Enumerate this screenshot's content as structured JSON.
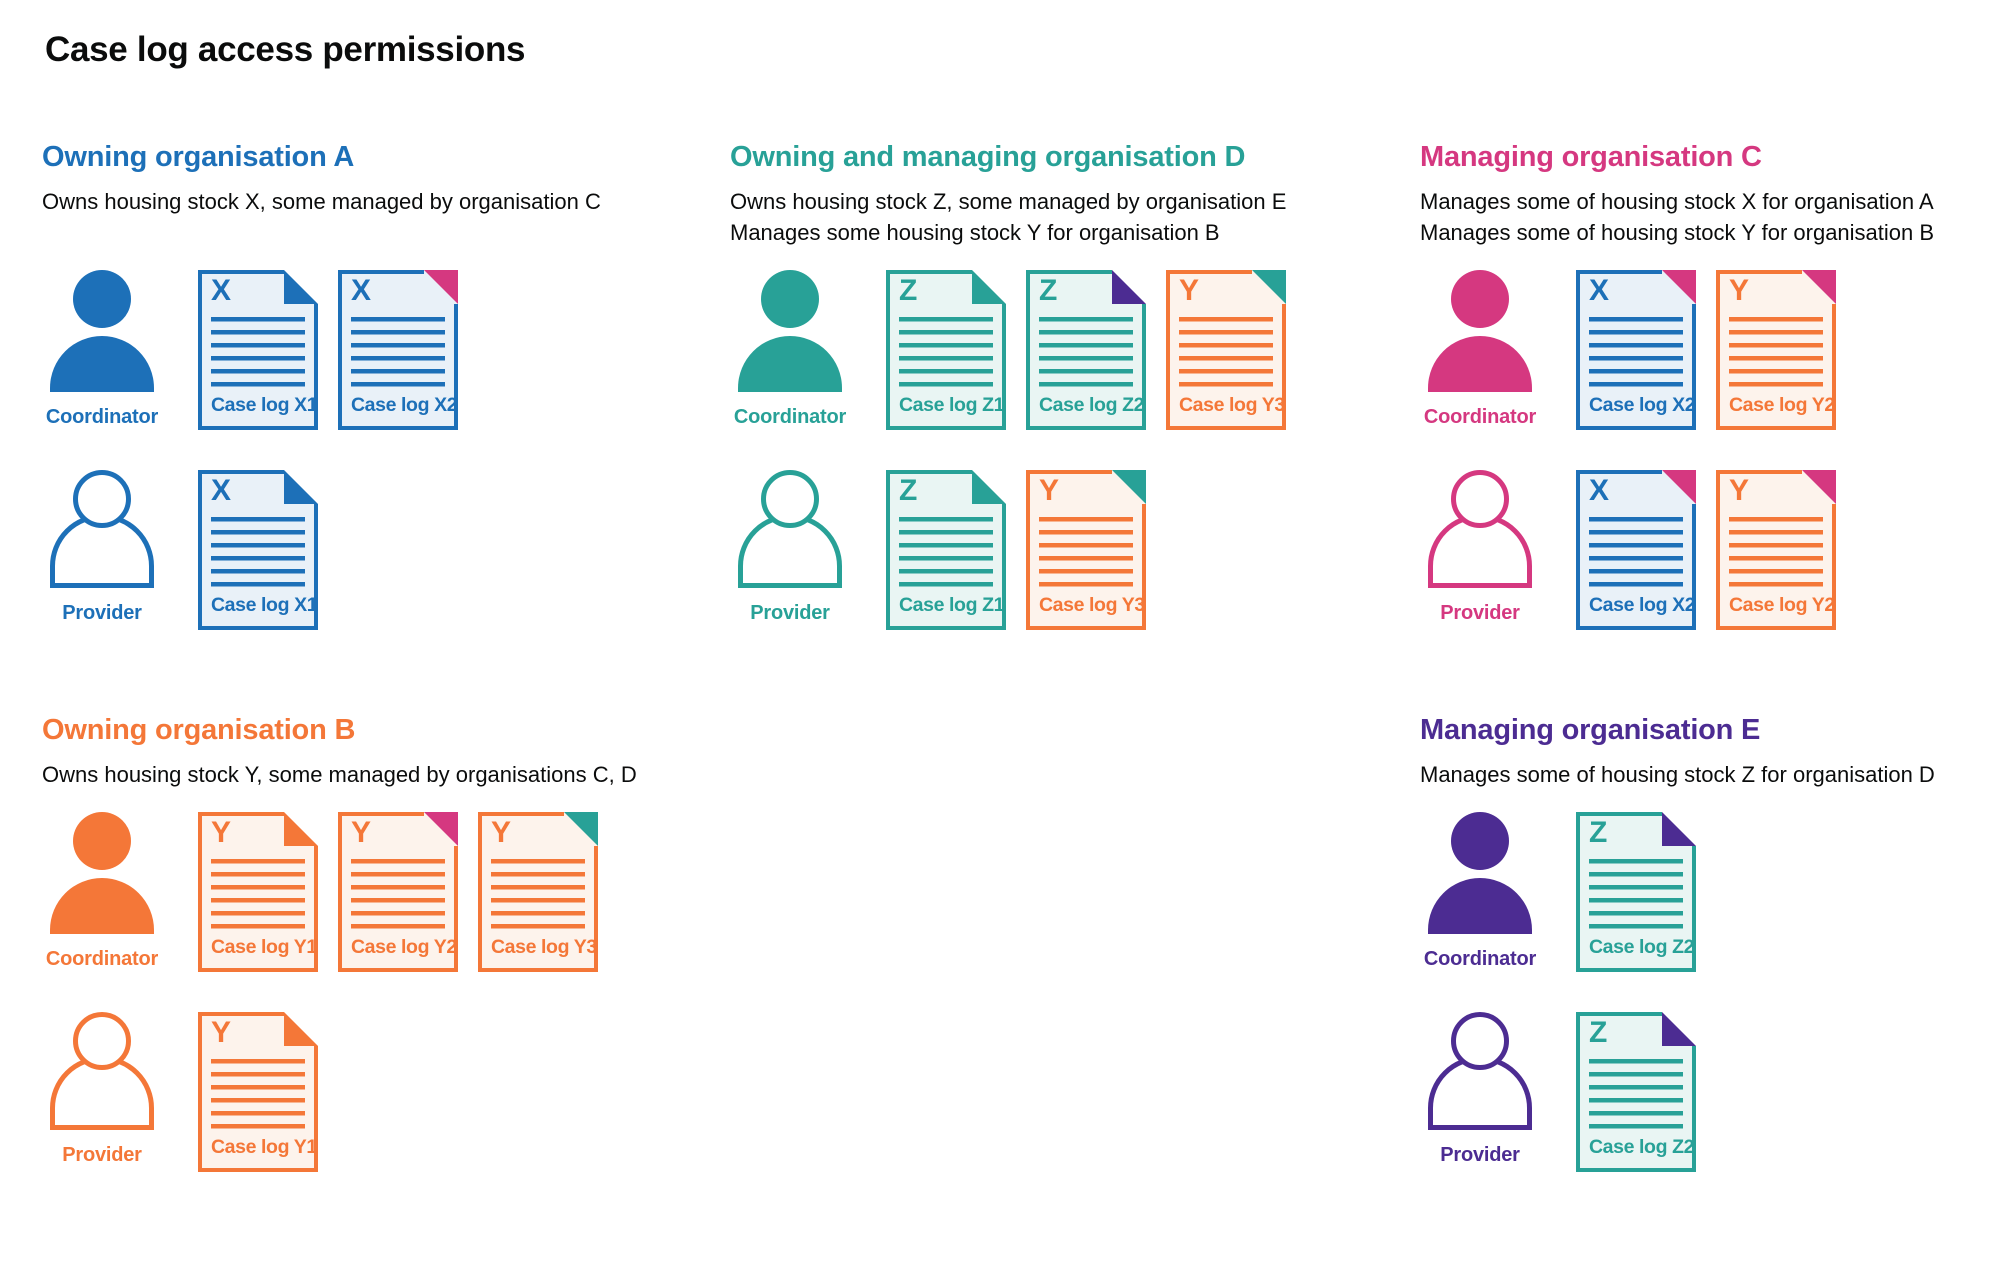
{
  "page_title": "Case log access permissions",
  "colors": {
    "blue": "#1d70b8",
    "teal": "#28a197",
    "pink": "#d53880",
    "orange": "#f47738",
    "purple": "#4c2c92",
    "text": "#0b0c0c"
  },
  "tints": {
    "blue": "#e9f1f8",
    "teal": "#e9f5f3",
    "orange": "#fdf3ec"
  },
  "sections": [
    {
      "id": "org-a",
      "heading": "Owning organisation A",
      "color": "blue",
      "description_lines": [
        "Owns housing stock X, some managed by organisation C"
      ],
      "rows": [
        {
          "role": "Coordinator",
          "person_style": "filled",
          "docs": [
            {
              "letter": "X",
              "label": "Case log X1",
              "doc_color": "blue",
              "fold_color": "blue",
              "fold_style": "dogear"
            },
            {
              "letter": "X",
              "label": "Case log X2",
              "doc_color": "blue",
              "fold_color": "pink",
              "fold_style": "corner"
            }
          ]
        },
        {
          "role": "Provider",
          "person_style": "outline",
          "docs": [
            {
              "letter": "X",
              "label": "Case log X1",
              "doc_color": "blue",
              "fold_color": "blue",
              "fold_style": "dogear"
            }
          ]
        }
      ]
    },
    {
      "id": "org-d",
      "heading": "Owning and managing organisation D",
      "color": "teal",
      "description_lines": [
        "Owns housing stock Z, some managed by organisation E",
        "Manages some housing stock Y for organisation B"
      ],
      "rows": [
        {
          "role": "Coordinator",
          "person_style": "filled",
          "docs": [
            {
              "letter": "Z",
              "label": "Case log Z1",
              "doc_color": "teal",
              "fold_color": "teal",
              "fold_style": "dogear"
            },
            {
              "letter": "Z",
              "label": "Case log Z2",
              "doc_color": "teal",
              "fold_color": "purple",
              "fold_style": "dogear"
            },
            {
              "letter": "Y",
              "label": "Case log Y3",
              "doc_color": "orange",
              "fold_color": "teal",
              "fold_style": "corner"
            }
          ]
        },
        {
          "role": "Provider",
          "person_style": "outline",
          "docs": [
            {
              "letter": "Z",
              "label": "Case log Z1",
              "doc_color": "teal",
              "fold_color": "teal",
              "fold_style": "dogear"
            },
            {
              "letter": "Y",
              "label": "Case log Y3",
              "doc_color": "orange",
              "fold_color": "teal",
              "fold_style": "corner"
            }
          ]
        }
      ]
    },
    {
      "id": "org-c",
      "heading": "Managing organisation C",
      "color": "pink",
      "description_lines": [
        "Manages some of housing stock X for organisation A",
        "Manages some of housing stock Y for organisation B"
      ],
      "rows": [
        {
          "role": "Coordinator",
          "person_style": "filled",
          "docs": [
            {
              "letter": "X",
              "label": "Case log X2",
              "doc_color": "blue",
              "fold_color": "pink",
              "fold_style": "corner"
            },
            {
              "letter": "Y",
              "label": "Case log Y2",
              "doc_color": "orange",
              "fold_color": "pink",
              "fold_style": "corner"
            }
          ]
        },
        {
          "role": "Provider",
          "person_style": "outline",
          "docs": [
            {
              "letter": "X",
              "label": "Case log X2",
              "doc_color": "blue",
              "fold_color": "pink",
              "fold_style": "corner"
            },
            {
              "letter": "Y",
              "label": "Case log Y2",
              "doc_color": "orange",
              "fold_color": "pink",
              "fold_style": "corner"
            }
          ]
        }
      ]
    },
    {
      "id": "org-b",
      "heading": "Owning organisation B",
      "color": "orange",
      "description_lines": [
        "Owns housing stock Y, some managed by organisations C, D"
      ],
      "rows": [
        {
          "role": "Coordinator",
          "person_style": "filled",
          "docs": [
            {
              "letter": "Y",
              "label": "Case log Y1",
              "doc_color": "orange",
              "fold_color": "orange",
              "fold_style": "dogear"
            },
            {
              "letter": "Y",
              "label": "Case log Y2",
              "doc_color": "orange",
              "fold_color": "pink",
              "fold_style": "corner"
            },
            {
              "letter": "Y",
              "label": "Case log Y3",
              "doc_color": "orange",
              "fold_color": "teal",
              "fold_style": "corner"
            }
          ]
        },
        {
          "role": "Provider",
          "person_style": "outline",
          "docs": [
            {
              "letter": "Y",
              "label": "Case log Y1",
              "doc_color": "orange",
              "fold_color": "orange",
              "fold_style": "dogear"
            }
          ]
        }
      ]
    },
    {
      "id": "org-e",
      "heading": "Managing organisation E",
      "color": "purple",
      "description_lines": [
        "Manages some of housing stock Z for organisation D"
      ],
      "rows": [
        {
          "role": "Coordinator",
          "person_style": "filled",
          "docs": [
            {
              "letter": "Z",
              "label": "Case log Z2",
              "doc_color": "teal",
              "fold_color": "purple",
              "fold_style": "dogear"
            }
          ]
        },
        {
          "role": "Provider",
          "person_style": "outline",
          "docs": [
            {
              "letter": "Z",
              "label": "Case log Z2",
              "doc_color": "teal",
              "fold_color": "purple",
              "fold_style": "dogear"
            }
          ]
        }
      ]
    }
  ]
}
